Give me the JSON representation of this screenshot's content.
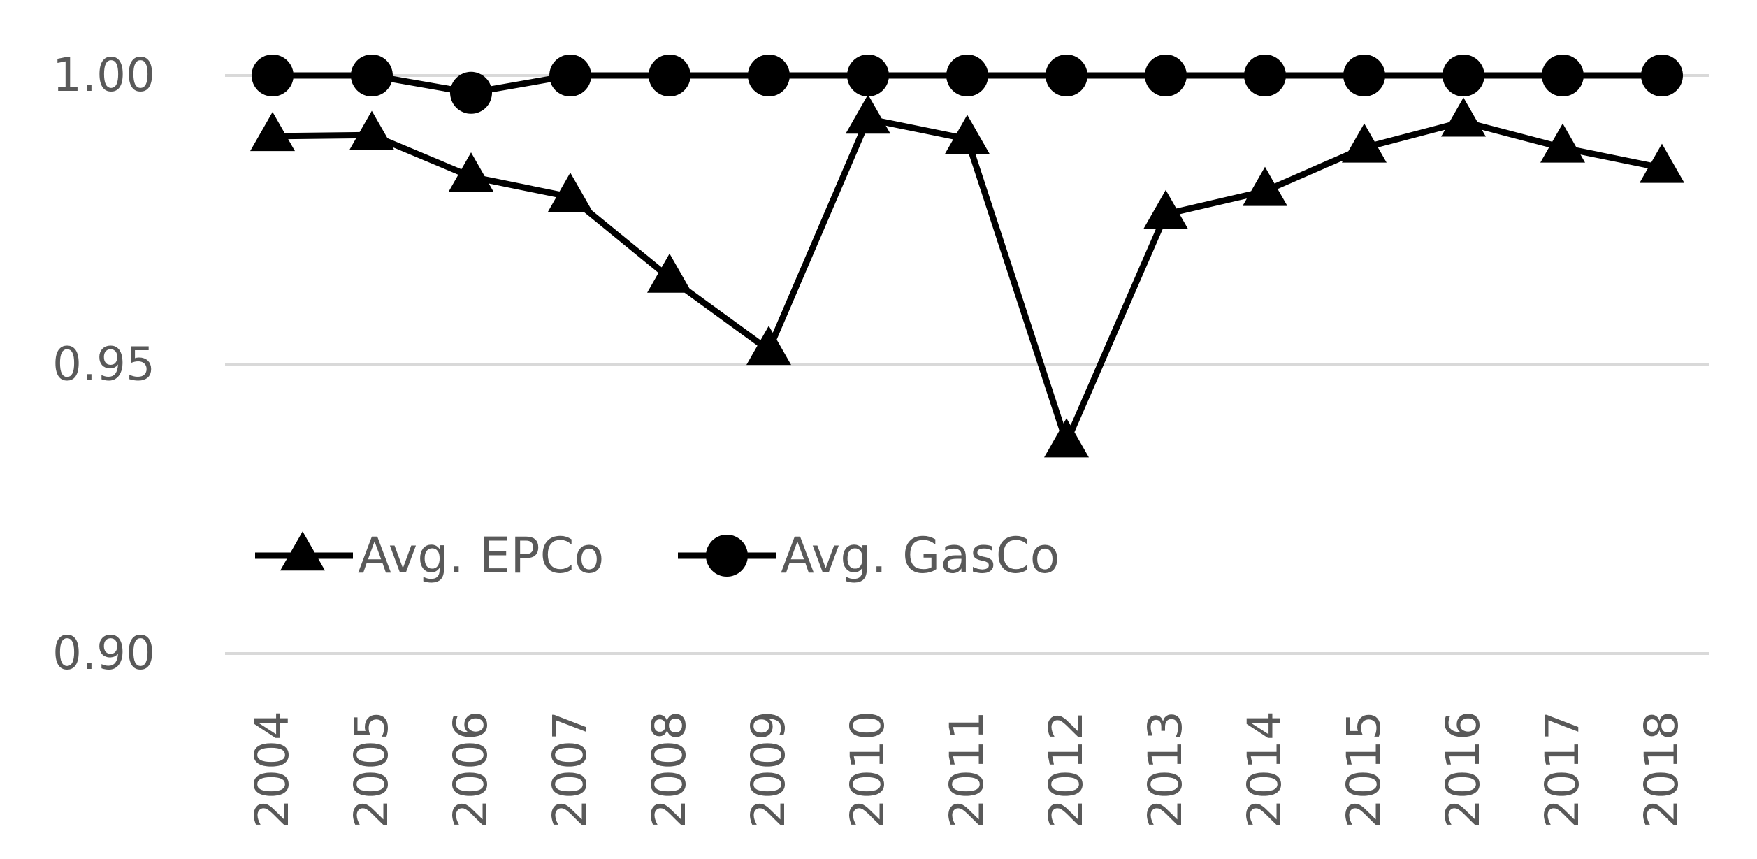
{
  "chart_data": {
    "type": "line",
    "title": "",
    "xlabel": "",
    "ylabel": "",
    "categories": [
      "2004",
      "2005",
      "2006",
      "2007",
      "2008",
      "2009",
      "2010",
      "2011",
      "2012",
      "2013",
      "2014",
      "2015",
      "2016",
      "2017",
      "2018"
    ],
    "ylim": [
      0.9,
      1.0
    ],
    "yticks": [
      "0.90",
      "0.95",
      "1.00"
    ],
    "grid": true,
    "legend_position": "inside-lower-left",
    "series": [
      {
        "name": "Avg. EPCo",
        "marker": "triangle",
        "color": "#000000",
        "values": [
          0.9895,
          0.9897,
          0.9825,
          0.979,
          0.965,
          0.9525,
          0.9925,
          0.989,
          0.9365,
          0.976,
          0.98,
          0.9875,
          0.992,
          0.9875,
          0.984
        ]
      },
      {
        "name": "Avg. GasCo",
        "marker": "circle",
        "color": "#000000",
        "values": [
          1.0,
          1.0,
          0.997,
          1.0,
          1.0,
          1.0,
          1.0,
          1.0,
          1.0,
          1.0,
          1.0,
          1.0,
          1.0,
          1.0,
          1.0
        ]
      }
    ],
    "colors": {
      "gridline": "#d9d9d9",
      "tick_text": "#595959",
      "series": "#000000"
    }
  }
}
